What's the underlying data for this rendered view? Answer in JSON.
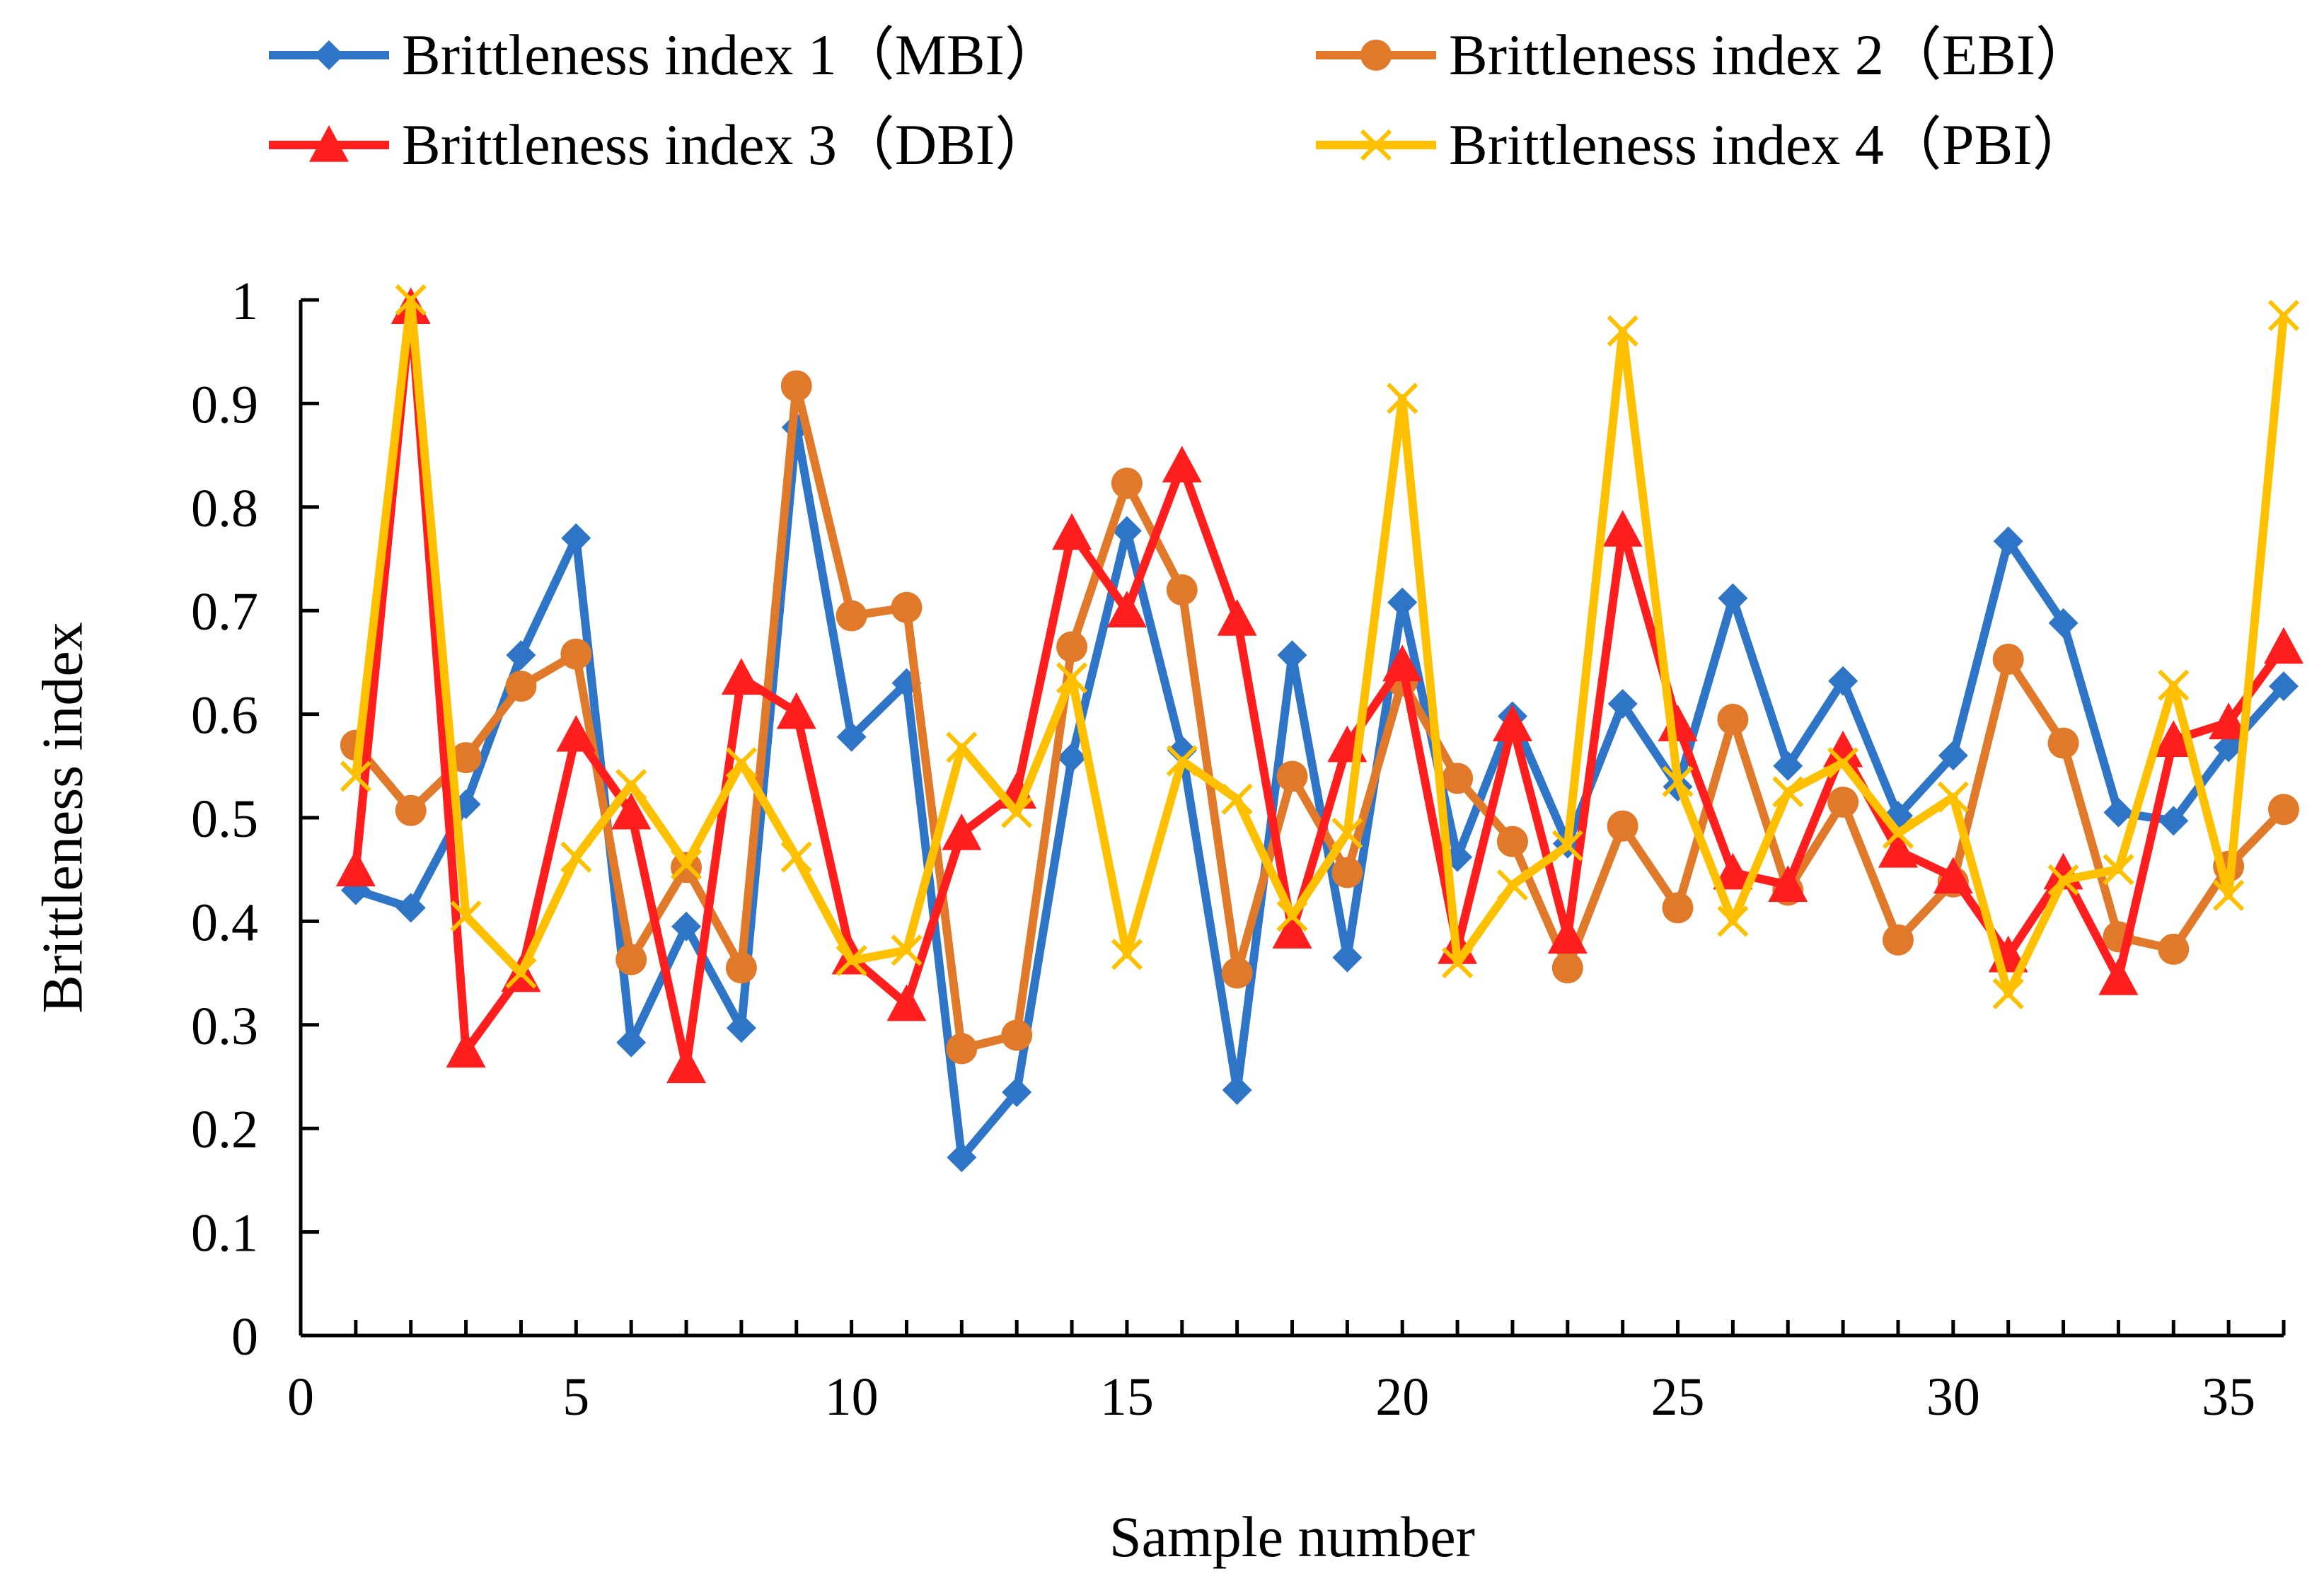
{
  "chart_data": {
    "type": "line",
    "title": "",
    "xlabel": "Sample number",
    "ylabel": "Brittleness index",
    "xlim": [
      0,
      36
    ],
    "ylim": [
      0,
      1
    ],
    "x_ticks": [
      0,
      5,
      10,
      15,
      20,
      25,
      30,
      35
    ],
    "x_tick_labels": [
      "0",
      "5",
      "10",
      "15",
      "20",
      "25",
      "30",
      "35"
    ],
    "y_ticks": [
      0,
      0.1,
      0.2,
      0.3,
      0.4,
      0.5,
      0.6,
      0.7,
      0.8,
      0.9,
      1
    ],
    "y_tick_labels": [
      "0",
      "0.1",
      "0.2",
      "0.3",
      "0.4",
      "0.5",
      "0.6",
      "0.7",
      "0.8",
      "0.9",
      "1"
    ],
    "grid": false,
    "legend_position": "top",
    "x": [
      1,
      2,
      3,
      4,
      5,
      6,
      7,
      8,
      9,
      10,
      11,
      12,
      13,
      14,
      15,
      16,
      17,
      18,
      19,
      20,
      21,
      22,
      23,
      24,
      25,
      26,
      27,
      28,
      29,
      30,
      31,
      32,
      33,
      34,
      35,
      36
    ],
    "series": [
      {
        "name": "Brittleness index 1（MBI）",
        "color": "#2E75C8",
        "marker": "diamond",
        "values": [
          0.43,
          0.413,
          0.513,
          0.657,
          0.77,
          0.283,
          0.395,
          0.297,
          0.877,
          0.578,
          0.63,
          0.172,
          0.235,
          0.558,
          0.777,
          0.565,
          0.237,
          0.657,
          0.365,
          0.708,
          0.462,
          0.598,
          0.475,
          0.61,
          0.53,
          0.712,
          0.55,
          0.632,
          0.502,
          0.56,
          0.767,
          0.688,
          0.505,
          0.497,
          0.568,
          0.627
        ]
      },
      {
        "name": "Brittleness index 2（EBI）",
        "color": "#E07A2A",
        "marker": "circle",
        "values": [
          0.57,
          0.507,
          0.558,
          0.627,
          0.658,
          0.363,
          0.452,
          0.355,
          0.917,
          0.695,
          0.703,
          0.277,
          0.29,
          0.665,
          0.823,
          0.72,
          0.35,
          0.54,
          0.447,
          0.632,
          0.538,
          0.477,
          0.355,
          0.492,
          0.413,
          0.595,
          0.43,
          0.515,
          0.382,
          0.438,
          0.653,
          0.572,
          0.385,
          0.373,
          0.453,
          0.508
        ]
      },
      {
        "name": "Brittleness index 3（DBI）",
        "color": "#FF1E1E",
        "marker": "triangle",
        "values": [
          0.45,
          0.993,
          0.275,
          0.348,
          0.58,
          0.505,
          0.26,
          0.635,
          0.602,
          0.365,
          0.32,
          0.485,
          0.525,
          0.775,
          0.7,
          0.84,
          0.692,
          0.39,
          0.57,
          0.648,
          0.375,
          0.59,
          0.385,
          0.778,
          0.59,
          0.447,
          0.435,
          0.565,
          0.468,
          0.443,
          0.367,
          0.447,
          0.345,
          0.575,
          0.592,
          0.665
        ]
      },
      {
        "name": "Brittleness index 4（PBI）",
        "color": "#FFC000",
        "marker": "x",
        "values": [
          0.54,
          1.0,
          0.405,
          0.35,
          0.462,
          0.532,
          0.455,
          0.553,
          0.462,
          0.362,
          0.372,
          0.568,
          0.505,
          0.635,
          0.368,
          0.555,
          0.518,
          0.405,
          0.485,
          0.905,
          0.36,
          0.435,
          0.473,
          0.97,
          0.535,
          0.4,
          0.525,
          0.553,
          0.485,
          0.52,
          0.33,
          0.44,
          0.45,
          0.628,
          0.425,
          0.985
        ]
      }
    ]
  }
}
